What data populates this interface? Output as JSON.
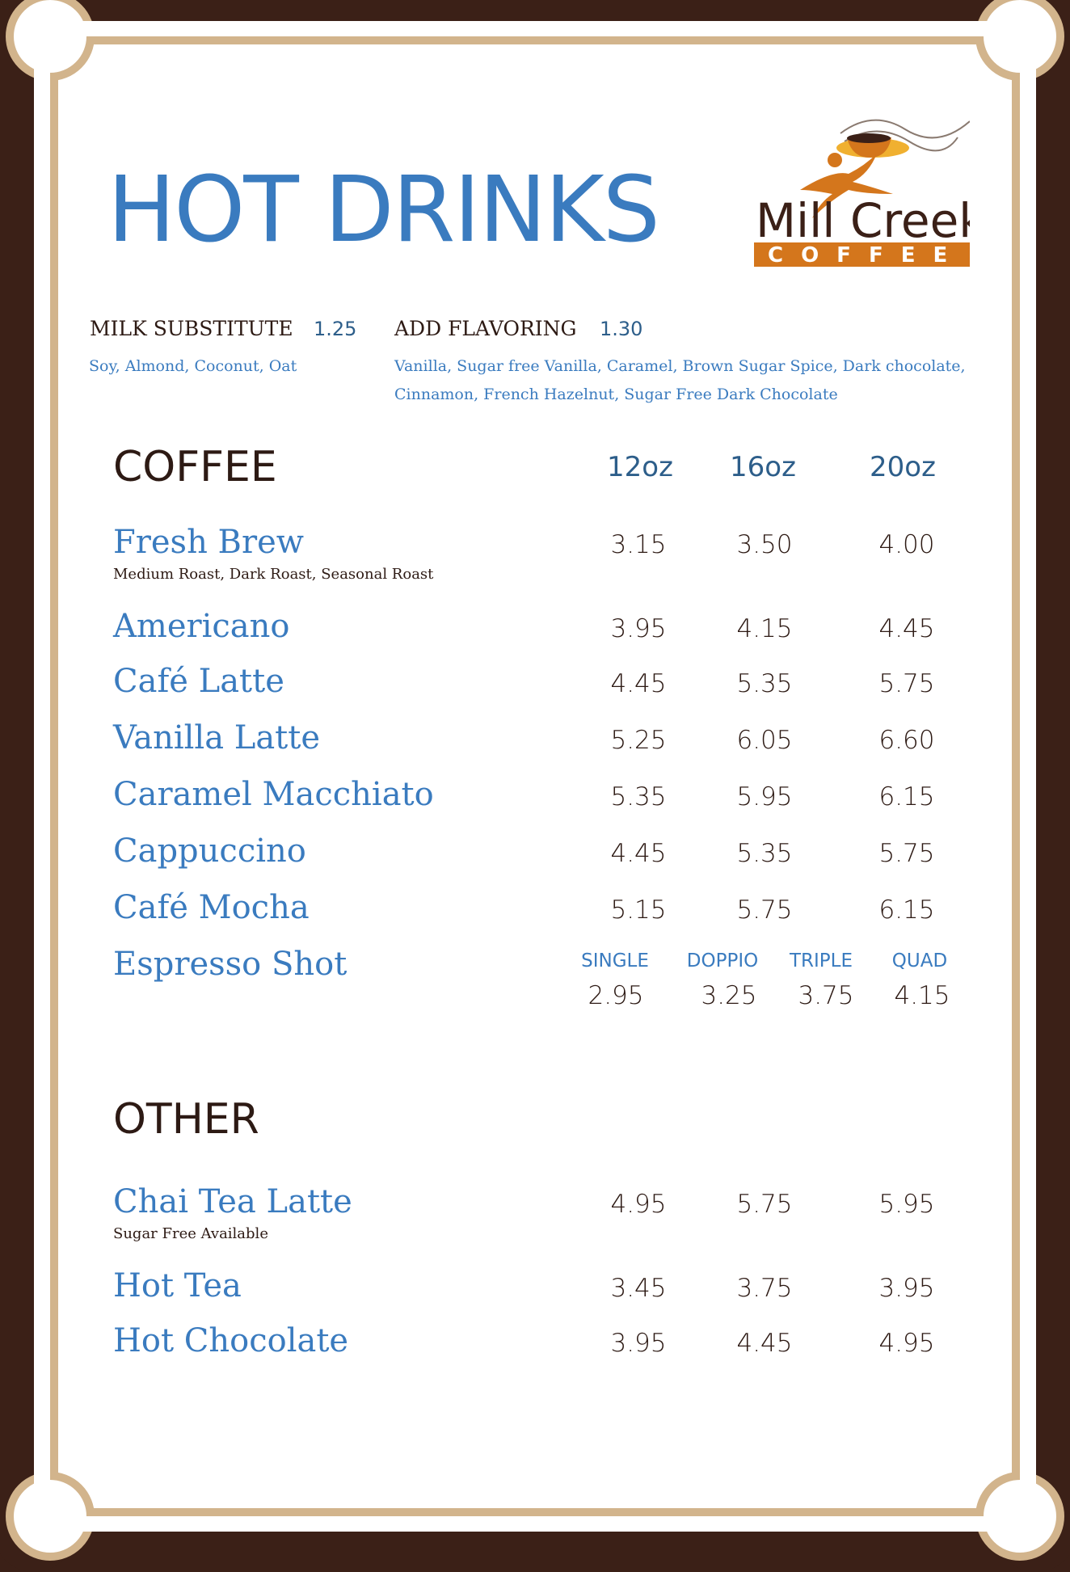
{
  "title": "HOT DRINKS",
  "logo": {
    "name": "Mill Creek",
    "sub": "COFFEE"
  },
  "addons": [
    {
      "label": "MILK SUBSTITUTE",
      "price": "1.25",
      "options": [
        "Soy, Almond, Coconut, Oat"
      ]
    },
    {
      "label": "ADD FLAVORING",
      "price": "1.30",
      "options": [
        "Vanilla, Sugar free Vanilla, Caramel, Brown Sugar Spice, Dark chocolate,",
        "Cinnamon, French Hazelnut, Sugar Free Dark Chocolate"
      ]
    }
  ],
  "sizes": [
    "12oz",
    "16oz",
    "20oz"
  ],
  "coffee": {
    "heading": "COFFEE",
    "items": [
      {
        "name": "Fresh Brew",
        "note": "Medium Roast, Dark Roast, Seasonal Roast",
        "prices": [
          "3.15",
          "3.50",
          "4.00"
        ]
      },
      {
        "name": "Americano",
        "prices": [
          "3.95",
          "4.15",
          "4.45"
        ]
      },
      {
        "name": "Café Latte",
        "prices": [
          "4.45",
          "5.35",
          "5.75"
        ]
      },
      {
        "name": "Vanilla Latte",
        "prices": [
          "5.25",
          "6.05",
          "6.60"
        ]
      },
      {
        "name": "Caramel Macchiato",
        "prices": [
          "5.35",
          "5.95",
          "6.15"
        ]
      },
      {
        "name": "Cappuccino",
        "prices": [
          "4.45",
          "5.35",
          "5.75"
        ]
      },
      {
        "name": "Café Mocha",
        "prices": [
          "5.15",
          "5.75",
          "6.15"
        ]
      }
    ],
    "espresso": {
      "name": "Espresso Shot",
      "labels": [
        "SINGLE",
        "DOPPIO",
        "TRIPLE",
        "QUAD"
      ],
      "prices": [
        "2.95",
        "3.25",
        "3.75",
        "4.15"
      ]
    }
  },
  "other": {
    "heading": "OTHER",
    "items": [
      {
        "name": "Chai Tea Latte",
        "note": "Sugar Free Available",
        "prices": [
          "4.95",
          "5.75",
          "5.95"
        ]
      },
      {
        "name": "Hot Tea",
        "prices": [
          "3.45",
          "3.75",
          "3.95"
        ]
      },
      {
        "name": "Hot Chocolate",
        "prices": [
          "3.95",
          "4.45",
          "4.95"
        ]
      }
    ]
  },
  "colors": {
    "border": "#3b2017",
    "frame": "#d2b48c",
    "accent": "#3a7bbf",
    "logo_orange": "#d4761c"
  }
}
